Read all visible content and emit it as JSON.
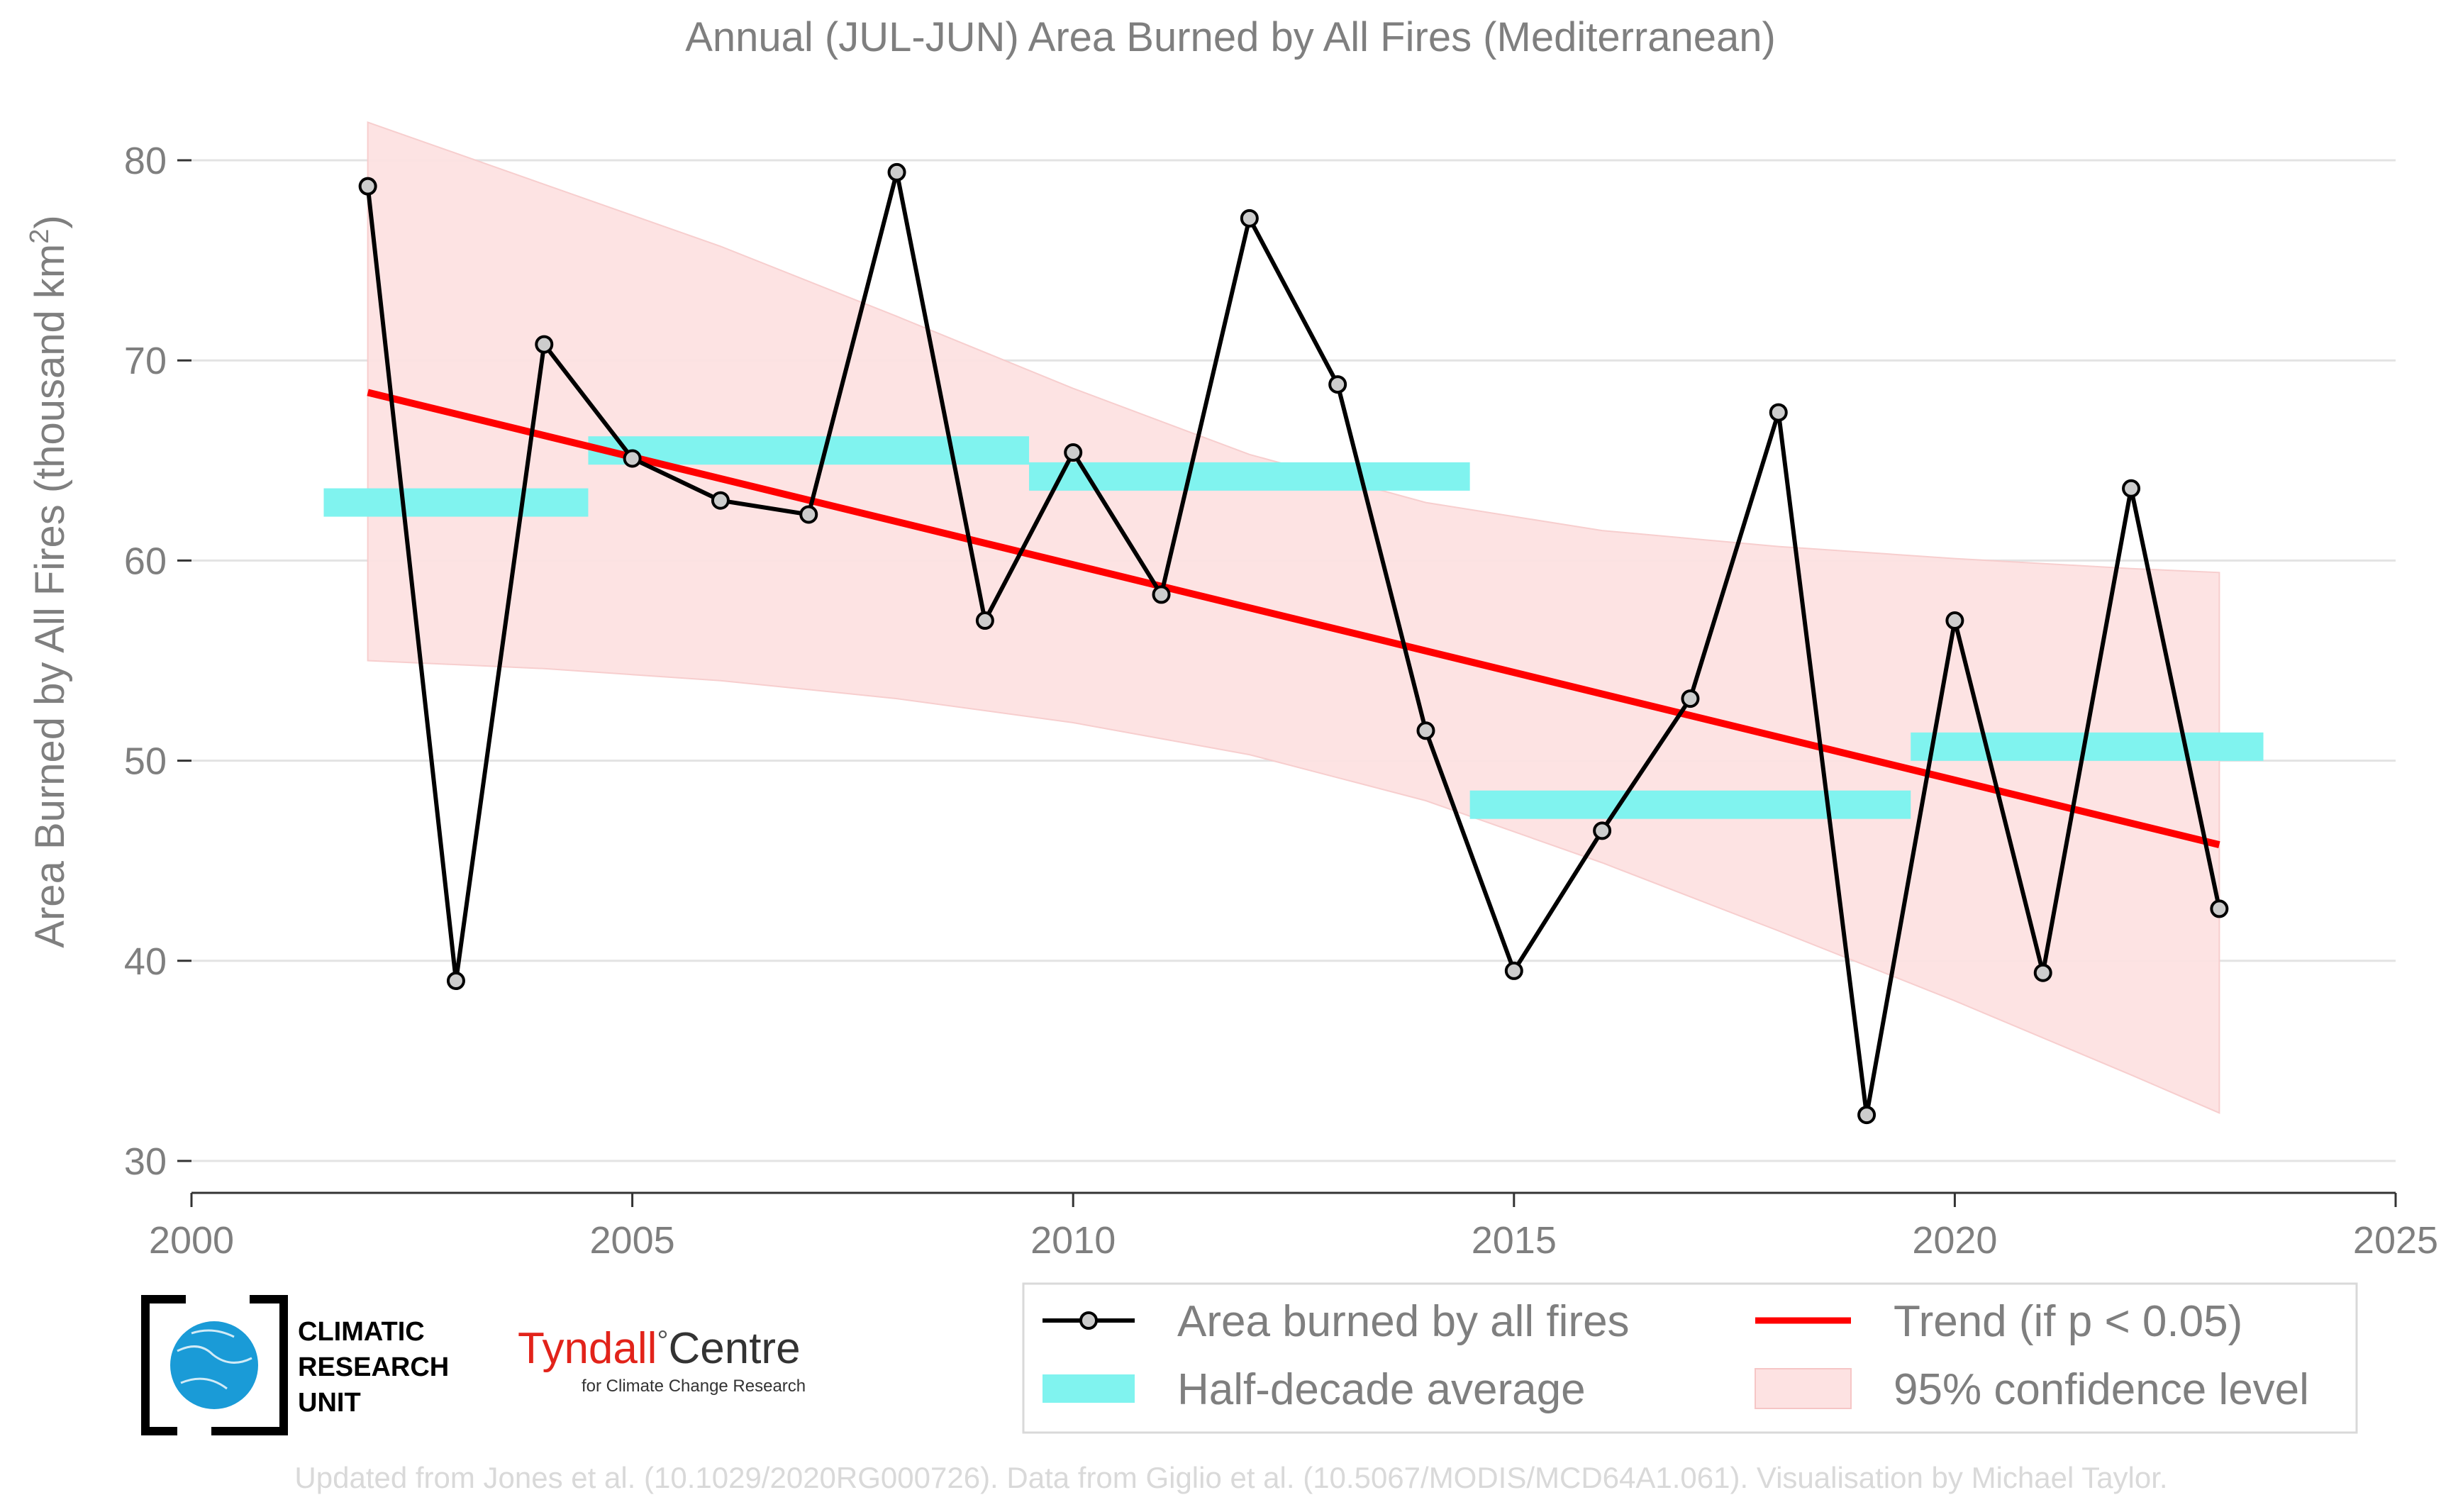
{
  "chart_data": {
    "type": "line",
    "title": "Annual (JUL-JUN) Area Burned by All Fires (Mediterranean)",
    "ylabel_main": "Area Burned by All Fires (thousand km",
    "ylabel_sup": "2",
    "ylabel_close": ")",
    "xlim": [
      2000,
      2025
    ],
    "ylim": [
      28.5,
      82
    ],
    "x_ticks": [
      2000,
      2005,
      2010,
      2015,
      2020,
      2025
    ],
    "y_ticks": [
      30,
      40,
      50,
      60,
      70,
      80
    ],
    "grid": "horizontal",
    "legend_placement": "bottom-right",
    "series": [
      {
        "name": "Area burned by all fires",
        "color": "#000000",
        "x": [
          2002,
          2003,
          2004,
          2005,
          2006,
          2007,
          2008,
          2009,
          2010,
          2011,
          2012,
          2013,
          2014,
          2015,
          2016,
          2017,
          2018,
          2019,
          2020,
          2021,
          2022,
          2023
        ],
        "y": [
          78.7,
          39.0,
          70.8,
          65.1,
          63.0,
          62.3,
          79.4,
          57.0,
          65.4,
          58.3,
          77.1,
          68.8,
          51.5,
          39.5,
          46.5,
          53.1,
          67.4,
          32.3,
          57.0,
          39.4,
          63.6,
          42.6
        ]
      }
    ],
    "trend": {
      "name": "Trend (if p < 0.05)",
      "color": "#ff0000",
      "x": [
        2002,
        2023
      ],
      "y": [
        68.4,
        45.8
      ]
    },
    "half_decade_average": {
      "name": "Half-decade average",
      "color": "#80f3ef",
      "segments": [
        {
          "x0": 2001.5,
          "x1": 2004.5,
          "y": 62.9
        },
        {
          "x0": 2004.5,
          "x1": 2009.5,
          "y": 65.5
        },
        {
          "x0": 2009.5,
          "x1": 2014.5,
          "y": 64.2
        },
        {
          "x0": 2014.5,
          "x1": 2019.5,
          "y": 47.8
        },
        {
          "x0": 2019.5,
          "x1": 2023.5,
          "y": 50.7
        }
      ]
    },
    "confidence_band": {
      "name": "95% confidence level",
      "color": "#fcd7d7",
      "x": [
        2002,
        2004,
        2006,
        2008,
        2010,
        2012,
        2014,
        2016,
        2018,
        2020,
        2022,
        2023
      ],
      "upper": [
        81.9,
        78.8,
        75.7,
        72.2,
        68.6,
        65.3,
        62.9,
        61.5,
        60.7,
        60.1,
        59.6,
        59.4
      ],
      "lower": [
        55.0,
        54.6,
        54.0,
        53.1,
        51.9,
        50.3,
        48.0,
        44.9,
        41.5,
        38.0,
        34.3,
        32.4
      ]
    }
  },
  "legend": {
    "item1": "Area burned by all fires",
    "item2": "Trend (if p < 0.05)",
    "item3": "Half-decade average",
    "item4": "95% confidence level"
  },
  "logos": {
    "cru_line1": "CLIMATIC",
    "cru_line2": "RESEARCH",
    "cru_line3": "UNIT",
    "tyndall_name": "Tyndall",
    "tyndall_degree": "°",
    "tyndall_centre": "Centre",
    "tyndall_sub": "for Climate Change Research",
    "cru_globe_color": "#1a9bd7",
    "tyndall_red": "#e2231a"
  },
  "footer": "Updated from Jones et al. (10.1029/2020RG000726). Data from Giglio et al. (10.5067/MODIS/MCD64A1.061). Visualisation by Michael Taylor."
}
